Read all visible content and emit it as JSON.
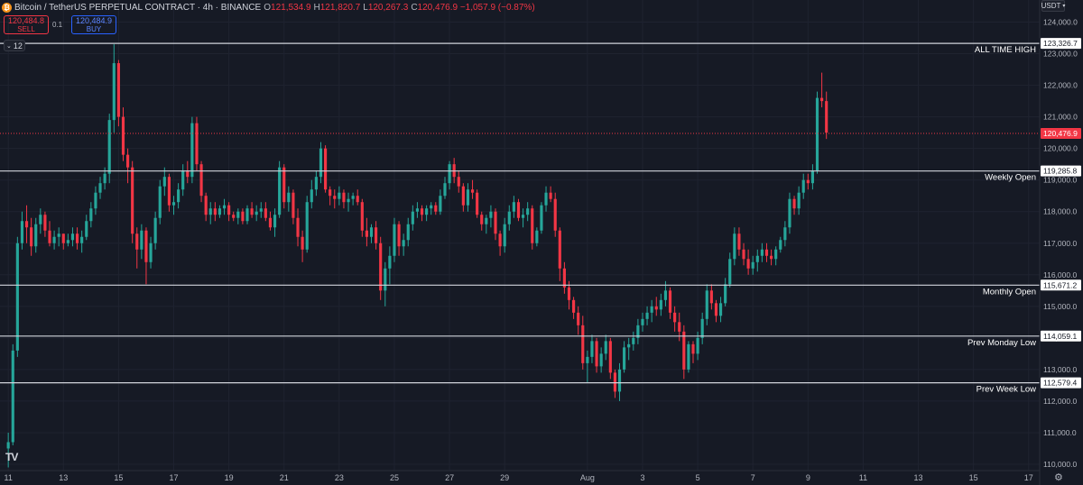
{
  "header": {
    "symbol": "Bitcoin / TetherUS PERPETUAL CONTRACT · 4h · BINANCE",
    "ohlc": [
      {
        "k": "O",
        "v": "121,534.9"
      },
      {
        "k": "H",
        "v": "121,820.7"
      },
      {
        "k": "L",
        "v": "120,267.3"
      },
      {
        "k": "C",
        "v": "120,476.9 −1,057.9 (−0.87%)"
      }
    ]
  },
  "trade": {
    "sell_price": "120,484.8",
    "sell_label": "SELL",
    "spread": "0.1",
    "buy_price": "120,484.9",
    "buy_label": "BUY"
  },
  "indicators_toggle": "12",
  "currency": "USDT",
  "colors": {
    "up": "#26a69a",
    "down": "#f23645",
    "background": "#161a25",
    "grid": "#1f2330",
    "level": "#d1d4dc"
  },
  "chart_data": {
    "type": "candlestick",
    "timeframe": "4h",
    "ylim": [
      109800,
      124700
    ],
    "y_ticks": [
      110000,
      111000,
      112000,
      113000,
      114000,
      115000,
      116000,
      117000,
      118000,
      119000,
      120000,
      121000,
      122000,
      123000,
      124000
    ],
    "y_tick_labels": [
      "110,000.0",
      "111,000.0",
      "112,000.0",
      "113,000.0",
      "114,000.0",
      "115,000.0",
      "116,000.0",
      "117,000.0",
      "118,000.0",
      "119,000.0",
      "120,000.0",
      "121,000.0",
      "122,000.0",
      "123,000.0",
      "124,000.0"
    ],
    "x_ticks": [
      {
        "label": "11",
        "bar": 0
      },
      {
        "label": "13",
        "bar": 12
      },
      {
        "label": "15",
        "bar": 24
      },
      {
        "label": "17",
        "bar": 36
      },
      {
        "label": "19",
        "bar": 48
      },
      {
        "label": "21",
        "bar": 60
      },
      {
        "label": "23",
        "bar": 72
      },
      {
        "label": "25",
        "bar": 84
      },
      {
        "label": "27",
        "bar": 96
      },
      {
        "label": "29",
        "bar": 108
      },
      {
        "label": "Aug",
        "bar": 126
      },
      {
        "label": "3",
        "bar": 138
      },
      {
        "label": "5",
        "bar": 150
      },
      {
        "label": "7",
        "bar": 162
      },
      {
        "label": "9",
        "bar": 174
      },
      {
        "label": "11",
        "bar": 186
      },
      {
        "label": "13",
        "bar": 198
      },
      {
        "label": "15",
        "bar": 210
      },
      {
        "label": "17",
        "bar": 222
      }
    ],
    "x_range_bars": [
      -1.8,
      224.4
    ],
    "levels": [
      {
        "name": "ALL TIME HIGH",
        "price": 123326.7,
        "label": "123,326.7"
      },
      {
        "name": "Weekly Open",
        "price": 119285.8,
        "label": "119,285.8"
      },
      {
        "name": "Monthly Open",
        "price": 115671.2,
        "label": "115,671.2"
      },
      {
        "name": "Prev Monday Low",
        "price": 114059.1,
        "label": "114,059.1"
      },
      {
        "name": "Prev Week Low",
        "price": 112579.4,
        "label": "112,579.4"
      }
    ],
    "last_price": {
      "price": 120476.9,
      "label": "120,476.9"
    },
    "candles": [
      [
        110500,
        111000,
        109900,
        110700
      ],
      [
        110700,
        113800,
        110600,
        113600
      ],
      [
        113600,
        117200,
        113400,
        117000
      ],
      [
        117000,
        118000,
        116800,
        117700
      ],
      [
        117700,
        118200,
        117000,
        117500
      ],
      [
        117500,
        117800,
        116600,
        116900
      ],
      [
        116900,
        117800,
        116700,
        117600
      ],
      [
        117600,
        118100,
        117300,
        117900
      ],
      [
        117900,
        118000,
        117200,
        117400
      ],
      [
        117400,
        117700,
        116900,
        117000
      ],
      [
        117000,
        117400,
        116800,
        117200
      ],
      [
        117200,
        117500,
        116900,
        117300
      ],
      [
        117300,
        117300,
        116800,
        117000
      ],
      [
        117000,
        117300,
        116900,
        117100
      ],
      [
        117100,
        117500,
        116900,
        117300
      ],
      [
        117300,
        117500,
        116800,
        117000
      ],
      [
        117000,
        117400,
        116700,
        117200
      ],
      [
        117200,
        117900,
        117100,
        117700
      ],
      [
        117700,
        118300,
        117500,
        118100
      ],
      [
        118100,
        118800,
        117900,
        118600
      ],
      [
        118600,
        119100,
        118400,
        118900
      ],
      [
        118900,
        119400,
        118700,
        119200
      ],
      [
        119200,
        121100,
        118900,
        120900
      ],
      [
        120900,
        123300,
        120500,
        122700
      ],
      [
        122700,
        122800,
        120700,
        121000
      ],
      [
        121000,
        121300,
        119600,
        119800
      ],
      [
        119800,
        120000,
        118900,
        119400
      ],
      [
        119400,
        119600,
        117000,
        117300
      ],
      [
        117300,
        117500,
        116200,
        116800
      ],
      [
        116800,
        117600,
        116500,
        117400
      ],
      [
        117400,
        117500,
        115700,
        116400
      ],
      [
        116400,
        117200,
        116200,
        117000
      ],
      [
        117000,
        118000,
        116800,
        117800
      ],
      [
        117800,
        119000,
        117600,
        118800
      ],
      [
        118800,
        119400,
        118500,
        119100
      ],
      [
        119100,
        119200,
        118000,
        118200
      ],
      [
        118200,
        118500,
        117900,
        118300
      ],
      [
        118300,
        118900,
        118100,
        118700
      ],
      [
        118700,
        119500,
        118500,
        119300
      ],
      [
        119300,
        119600,
        118900,
        119100
      ],
      [
        119100,
        121000,
        118900,
        120800
      ],
      [
        120800,
        121000,
        119300,
        119500
      ],
      [
        119500,
        119600,
        118300,
        118500
      ],
      [
        118500,
        118600,
        117700,
        117900
      ],
      [
        117900,
        118300,
        117600,
        118100
      ],
      [
        118100,
        118300,
        117700,
        117900
      ],
      [
        117900,
        118200,
        117800,
        118100
      ],
      [
        118100,
        118400,
        117900,
        118200
      ],
      [
        118200,
        118300,
        117700,
        117900
      ],
      [
        117900,
        118000,
        117700,
        117800
      ],
      [
        117800,
        118100,
        117600,
        118000
      ],
      [
        118000,
        118100,
        117600,
        117700
      ],
      [
        117700,
        118200,
        117600,
        118100
      ],
      [
        118100,
        118300,
        117800,
        117900
      ],
      [
        117900,
        118200,
        117700,
        118000
      ],
      [
        118000,
        118300,
        117800,
        118100
      ],
      [
        118100,
        118300,
        117700,
        117800
      ],
      [
        117800,
        118000,
        117400,
        117500
      ],
      [
        117500,
        118100,
        117200,
        117900
      ],
      [
        117900,
        119600,
        117800,
        119400
      ],
      [
        119400,
        119500,
        118100,
        118300
      ],
      [
        118300,
        118800,
        118000,
        118600
      ],
      [
        118600,
        118700,
        117600,
        117800
      ],
      [
        117800,
        118100,
        116900,
        117200
      ],
      [
        117200,
        117400,
        116400,
        116800
      ],
      [
        116800,
        118500,
        116700,
        118300
      ],
      [
        118300,
        119000,
        118100,
        118700
      ],
      [
        118700,
        119300,
        118500,
        119100
      ],
      [
        119100,
        120200,
        118900,
        120000
      ],
      [
        120000,
        120100,
        118600,
        118700
      ],
      [
        118700,
        118800,
        118200,
        118500
      ],
      [
        118500,
        118700,
        118100,
        118400
      ],
      [
        118400,
        118800,
        118200,
        118600
      ],
      [
        118600,
        118700,
        118100,
        118300
      ],
      [
        118300,
        118600,
        118000,
        118400
      ],
      [
        118400,
        118600,
        118200,
        118500
      ],
      [
        118500,
        118700,
        118200,
        118300
      ],
      [
        118300,
        118400,
        117200,
        117400
      ],
      [
        117400,
        117800,
        116900,
        117200
      ],
      [
        117200,
        117600,
        117000,
        117500
      ],
      [
        117500,
        117700,
        116800,
        117000
      ],
      [
        117000,
        117200,
        115200,
        115500
      ],
      [
        115500,
        116400,
        115000,
        116200
      ],
      [
        116200,
        116900,
        115700,
        116600
      ],
      [
        116600,
        117800,
        116400,
        117600
      ],
      [
        117600,
        117700,
        116600,
        116900
      ],
      [
        116900,
        117300,
        116600,
        117100
      ],
      [
        117100,
        117800,
        116900,
        117600
      ],
      [
        117600,
        118200,
        117400,
        118000
      ],
      [
        118000,
        118300,
        117800,
        118100
      ],
      [
        118100,
        118200,
        117700,
        117900
      ],
      [
        117900,
        118200,
        117700,
        118100
      ],
      [
        118100,
        118300,
        117900,
        118200
      ],
      [
        118200,
        118300,
        117900,
        118000
      ],
      [
        118000,
        118700,
        117900,
        118500
      ],
      [
        118500,
        119100,
        118400,
        118900
      ],
      [
        118900,
        119600,
        118700,
        119500
      ],
      [
        119500,
        119700,
        118900,
        119100
      ],
      [
        119100,
        119300,
        118600,
        118800
      ],
      [
        118800,
        118900,
        118000,
        118200
      ],
      [
        118200,
        118900,
        118000,
        118700
      ],
      [
        118700,
        119000,
        118400,
        118600
      ],
      [
        118600,
        118700,
        117800,
        117900
      ],
      [
        117900,
        118000,
        117400,
        117600
      ],
      [
        117600,
        117900,
        117300,
        117800
      ],
      [
        117800,
        118200,
        117500,
        118000
      ],
      [
        118000,
        118100,
        117100,
        117300
      ],
      [
        117300,
        117400,
        116600,
        116900
      ],
      [
        116900,
        117800,
        116700,
        117600
      ],
      [
        117600,
        118200,
        117400,
        118000
      ],
      [
        118000,
        118500,
        117800,
        118300
      ],
      [
        118300,
        118400,
        117700,
        117800
      ],
      [
        117800,
        118100,
        117500,
        117900
      ],
      [
        117900,
        118300,
        117700,
        118100
      ],
      [
        118100,
        118200,
        116800,
        117000
      ],
      [
        117000,
        117500,
        116900,
        117400
      ],
      [
        117400,
        118300,
        117300,
        118200
      ],
      [
        118200,
        118800,
        118000,
        118600
      ],
      [
        118600,
        118800,
        118300,
        118400
      ],
      [
        118400,
        118600,
        117200,
        117400
      ],
      [
        117400,
        117500,
        115800,
        116200
      ],
      [
        116200,
        116400,
        115400,
        115600
      ],
      [
        115600,
        115800,
        114900,
        115200
      ],
      [
        115200,
        115300,
        114600,
        114800
      ],
      [
        114800,
        115000,
        114100,
        114400
      ],
      [
        114400,
        114700,
        113000,
        113200
      ],
      [
        113200,
        113600,
        112600,
        113400
      ],
      [
        113400,
        114100,
        113200,
        113900
      ],
      [
        113900,
        114000,
        112900,
        113100
      ],
      [
        113100,
        113700,
        112900,
        113500
      ],
      [
        113500,
        114100,
        113300,
        113900
      ],
      [
        113900,
        114000,
        112700,
        112900
      ],
      [
        112900,
        113000,
        112100,
        112300
      ],
      [
        112300,
        113200,
        112000,
        113000
      ],
      [
        113000,
        113900,
        112900,
        113700
      ],
      [
        113700,
        114000,
        113300,
        113800
      ],
      [
        113800,
        114200,
        113600,
        114000
      ],
      [
        114000,
        114600,
        113800,
        114400
      ],
      [
        114400,
        114800,
        114200,
        114600
      ],
      [
        114600,
        115000,
        114400,
        114800
      ],
      [
        114800,
        115200,
        114500,
        115000
      ],
      [
        115000,
        115300,
        114700,
        114900
      ],
      [
        114900,
        115400,
        114700,
        115200
      ],
      [
        115200,
        115800,
        115000,
        115500
      ],
      [
        115500,
        115600,
        114600,
        114800
      ],
      [
        114800,
        115000,
        114200,
        114500
      ],
      [
        114500,
        114800,
        113900,
        114200
      ],
      [
        114200,
        114400,
        112700,
        113000
      ],
      [
        113000,
        113900,
        112900,
        113800
      ],
      [
        113800,
        113900,
        113200,
        113500
      ],
      [
        113500,
        114200,
        113300,
        114000
      ],
      [
        114000,
        114800,
        113800,
        114600
      ],
      [
        114600,
        115700,
        114400,
        115500
      ],
      [
        115500,
        115700,
        114900,
        115100
      ],
      [
        115100,
        115200,
        114500,
        114700
      ],
      [
        114700,
        115300,
        114500,
        115100
      ],
      [
        115100,
        115900,
        115000,
        115700
      ],
      [
        115700,
        116700,
        115600,
        116500
      ],
      [
        116500,
        117500,
        116300,
        117300
      ],
      [
        117300,
        117500,
        116600,
        116800
      ],
      [
        116800,
        117000,
        116300,
        116500
      ],
      [
        116500,
        116800,
        116000,
        116200
      ],
      [
        116200,
        116600,
        116000,
        116400
      ],
      [
        116400,
        116800,
        116100,
        116600
      ],
      [
        116600,
        117000,
        116400,
        116800
      ],
      [
        116800,
        117000,
        116400,
        116600
      ],
      [
        116600,
        116800,
        116300,
        116500
      ],
      [
        116500,
        116900,
        116300,
        116800
      ],
      [
        116800,
        117200,
        116700,
        117100
      ],
      [
        117100,
        117700,
        116900,
        117500
      ],
      [
        117500,
        118600,
        117300,
        118400
      ],
      [
        118400,
        118500,
        117900,
        118100
      ],
      [
        118100,
        118800,
        117900,
        118600
      ],
      [
        118600,
        119200,
        118400,
        119000
      ],
      [
        119000,
        119200,
        118700,
        118900
      ],
      [
        118900,
        119500,
        118700,
        119300
      ],
      [
        119300,
        121800,
        119200,
        121600
      ],
      [
        121600,
        122400,
        121300,
        121500
      ],
      [
        121500,
        121800,
        120300,
        120500
      ]
    ]
  }
}
